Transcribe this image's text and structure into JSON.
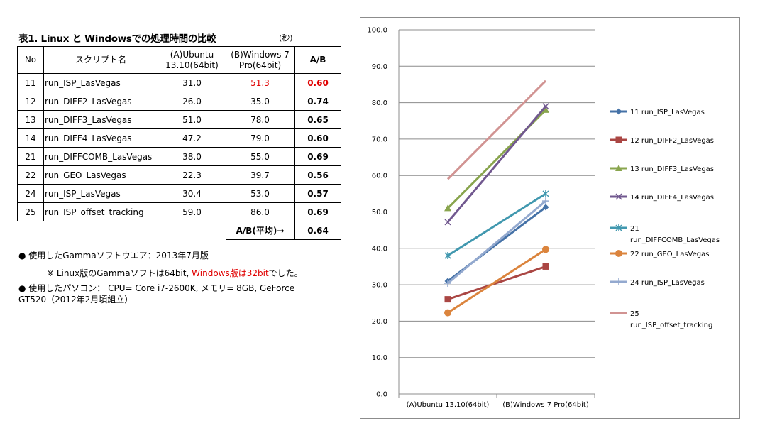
{
  "table": {
    "title": "表1. Linux と Windowsでの処理時間の比較",
    "unit": "(秒)",
    "headers": {
      "no": "No",
      "script": "スクリプト名",
      "a_line1": "(A)Ubuntu",
      "a_line2": "13.10(64bit)",
      "b_line1": "(B)Windows 7",
      "b_line2": "Pro(64bit)",
      "ratio": "A/B"
    },
    "rows": [
      {
        "no": "11",
        "script": "run_ISP_LasVegas",
        "a": "31.0",
        "b": "51.3",
        "ratio": "0.60"
      },
      {
        "no": "12",
        "script": "run_DIFF2_LasVegas",
        "a": "26.0",
        "b": "35.0",
        "ratio": "0.74"
      },
      {
        "no": "13",
        "script": "run_DIFF3_LasVegas",
        "a": "51.0",
        "b": "78.0",
        "ratio": "0.65"
      },
      {
        "no": "14",
        "script": "run_DIFF4_LasVegas",
        "a": "47.2",
        "b": "79.0",
        "ratio": "0.60"
      },
      {
        "no": "21",
        "script": "run_DIFFCOMB_LasVegas",
        "a": "38.0",
        "b": "55.0",
        "ratio": "0.69"
      },
      {
        "no": "22",
        "script": "run_GEO_LasVegas",
        "a": "22.3",
        "b": "39.7",
        "ratio": "0.56"
      },
      {
        "no": "24",
        "script": "run_ISP_LasVegas",
        "a": "30.4",
        "b": "53.0",
        "ratio": "0.57"
      },
      {
        "no": "25",
        "script": "run_ISP_offset_tracking",
        "a": "59.0",
        "b": "86.0",
        "ratio": "0.69"
      }
    ],
    "highlight_color": "#e00000",
    "average_label": "A/B(平均)→",
    "average_value": "0.64"
  },
  "notes": {
    "gamma": "● 使用したGammaソフトウエア：2013年7月版",
    "bits_prefix": "※ Linux版のGammaソフトは64bit, ",
    "bits_red": "Windows版は32bit",
    "bits_suffix": "でした。",
    "pc_line1": "● 使用したパソコン：  CPU= Core i7-2600K, メモリ= 8GB, GeForce",
    "pc_line2": "GT520（2012年2月頃組立）"
  },
  "chart_data": {
    "type": "line",
    "categories": [
      "(A)Ubuntu 13.10(64bit)",
      "(B)Windows 7 Pro(64bit)"
    ],
    "ylim": [
      0,
      100
    ],
    "yticks": [
      "0.0",
      "10.0",
      "20.0",
      "30.0",
      "40.0",
      "50.0",
      "60.0",
      "70.0",
      "80.0",
      "90.0",
      "100.0"
    ],
    "grid": true,
    "legend_position": "right",
    "series": [
      {
        "name": "11 run_ISP_LasVegas",
        "legend_lines": [
          "11 run_ISP_LasVegas"
        ],
        "values": [
          31.0,
          51.3
        ],
        "color": "#4572A7",
        "marker": "diamond"
      },
      {
        "name": "12 run_DIFF2_LasVegas",
        "legend_lines": [
          "12 run_DIFF2_LasVegas"
        ],
        "values": [
          26.0,
          35.0
        ],
        "color": "#AA4643",
        "marker": "square"
      },
      {
        "name": "13 run_DIFF3_LasVegas",
        "legend_lines": [
          "13 run_DIFF3_LasVegas"
        ],
        "values": [
          51.0,
          78.0
        ],
        "color": "#89A54E",
        "marker": "triangle"
      },
      {
        "name": "14 run_DIFF4_LasVegas",
        "legend_lines": [
          "14 run_DIFF4_LasVegas"
        ],
        "values": [
          47.2,
          79.0
        ],
        "color": "#71588F",
        "marker": "x"
      },
      {
        "name": "21 run_DIFFCOMB_LasVegas",
        "legend_lines": [
          "21",
          "run_DIFFCOMB_LasVegas"
        ],
        "values": [
          38.0,
          55.0
        ],
        "color": "#4198AF",
        "marker": "star"
      },
      {
        "name": "22 run_GEO_LasVegas",
        "legend_lines": [
          "22 run_GEO_LasVegas"
        ],
        "values": [
          22.3,
          39.7
        ],
        "color": "#DB843D",
        "marker": "circle"
      },
      {
        "name": "24 run_ISP_LasVegas",
        "legend_lines": [
          "24 run_ISP_LasVegas"
        ],
        "values": [
          30.4,
          53.0
        ],
        "color": "#93A9CF",
        "marker": "plus"
      },
      {
        "name": "25 run_ISP_offset_tracking",
        "legend_lines": [
          "25",
          "run_ISP_offset_tracking"
        ],
        "values": [
          59.0,
          86.0
        ],
        "color": "#D19392",
        "marker": "none"
      }
    ]
  }
}
